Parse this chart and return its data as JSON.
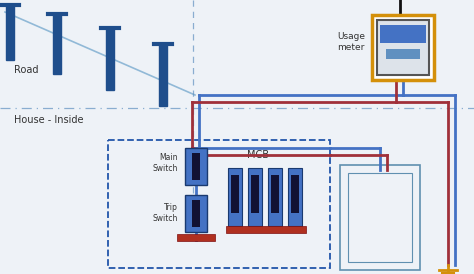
{
  "bg_color": "#eef2f7",
  "road_label": "Road",
  "house_label": "House - Inside",
  "usage_meter_label": "Usage\nmeter",
  "main_switch_label": "Main\nSwitch",
  "trip_switch_label": "Trip\nSwitch",
  "mcb_label": "MCB",
  "pole_color": "#1f4e8c",
  "wire_blue": "#4472c4",
  "wire_red": "#a0303a",
  "wire_dark": "#111111",
  "meter_border": "#d4900a",
  "dashed_line_color": "#6090c0",
  "dashed_box_color": "#2255aa",
  "ground_color": "#d4900a"
}
